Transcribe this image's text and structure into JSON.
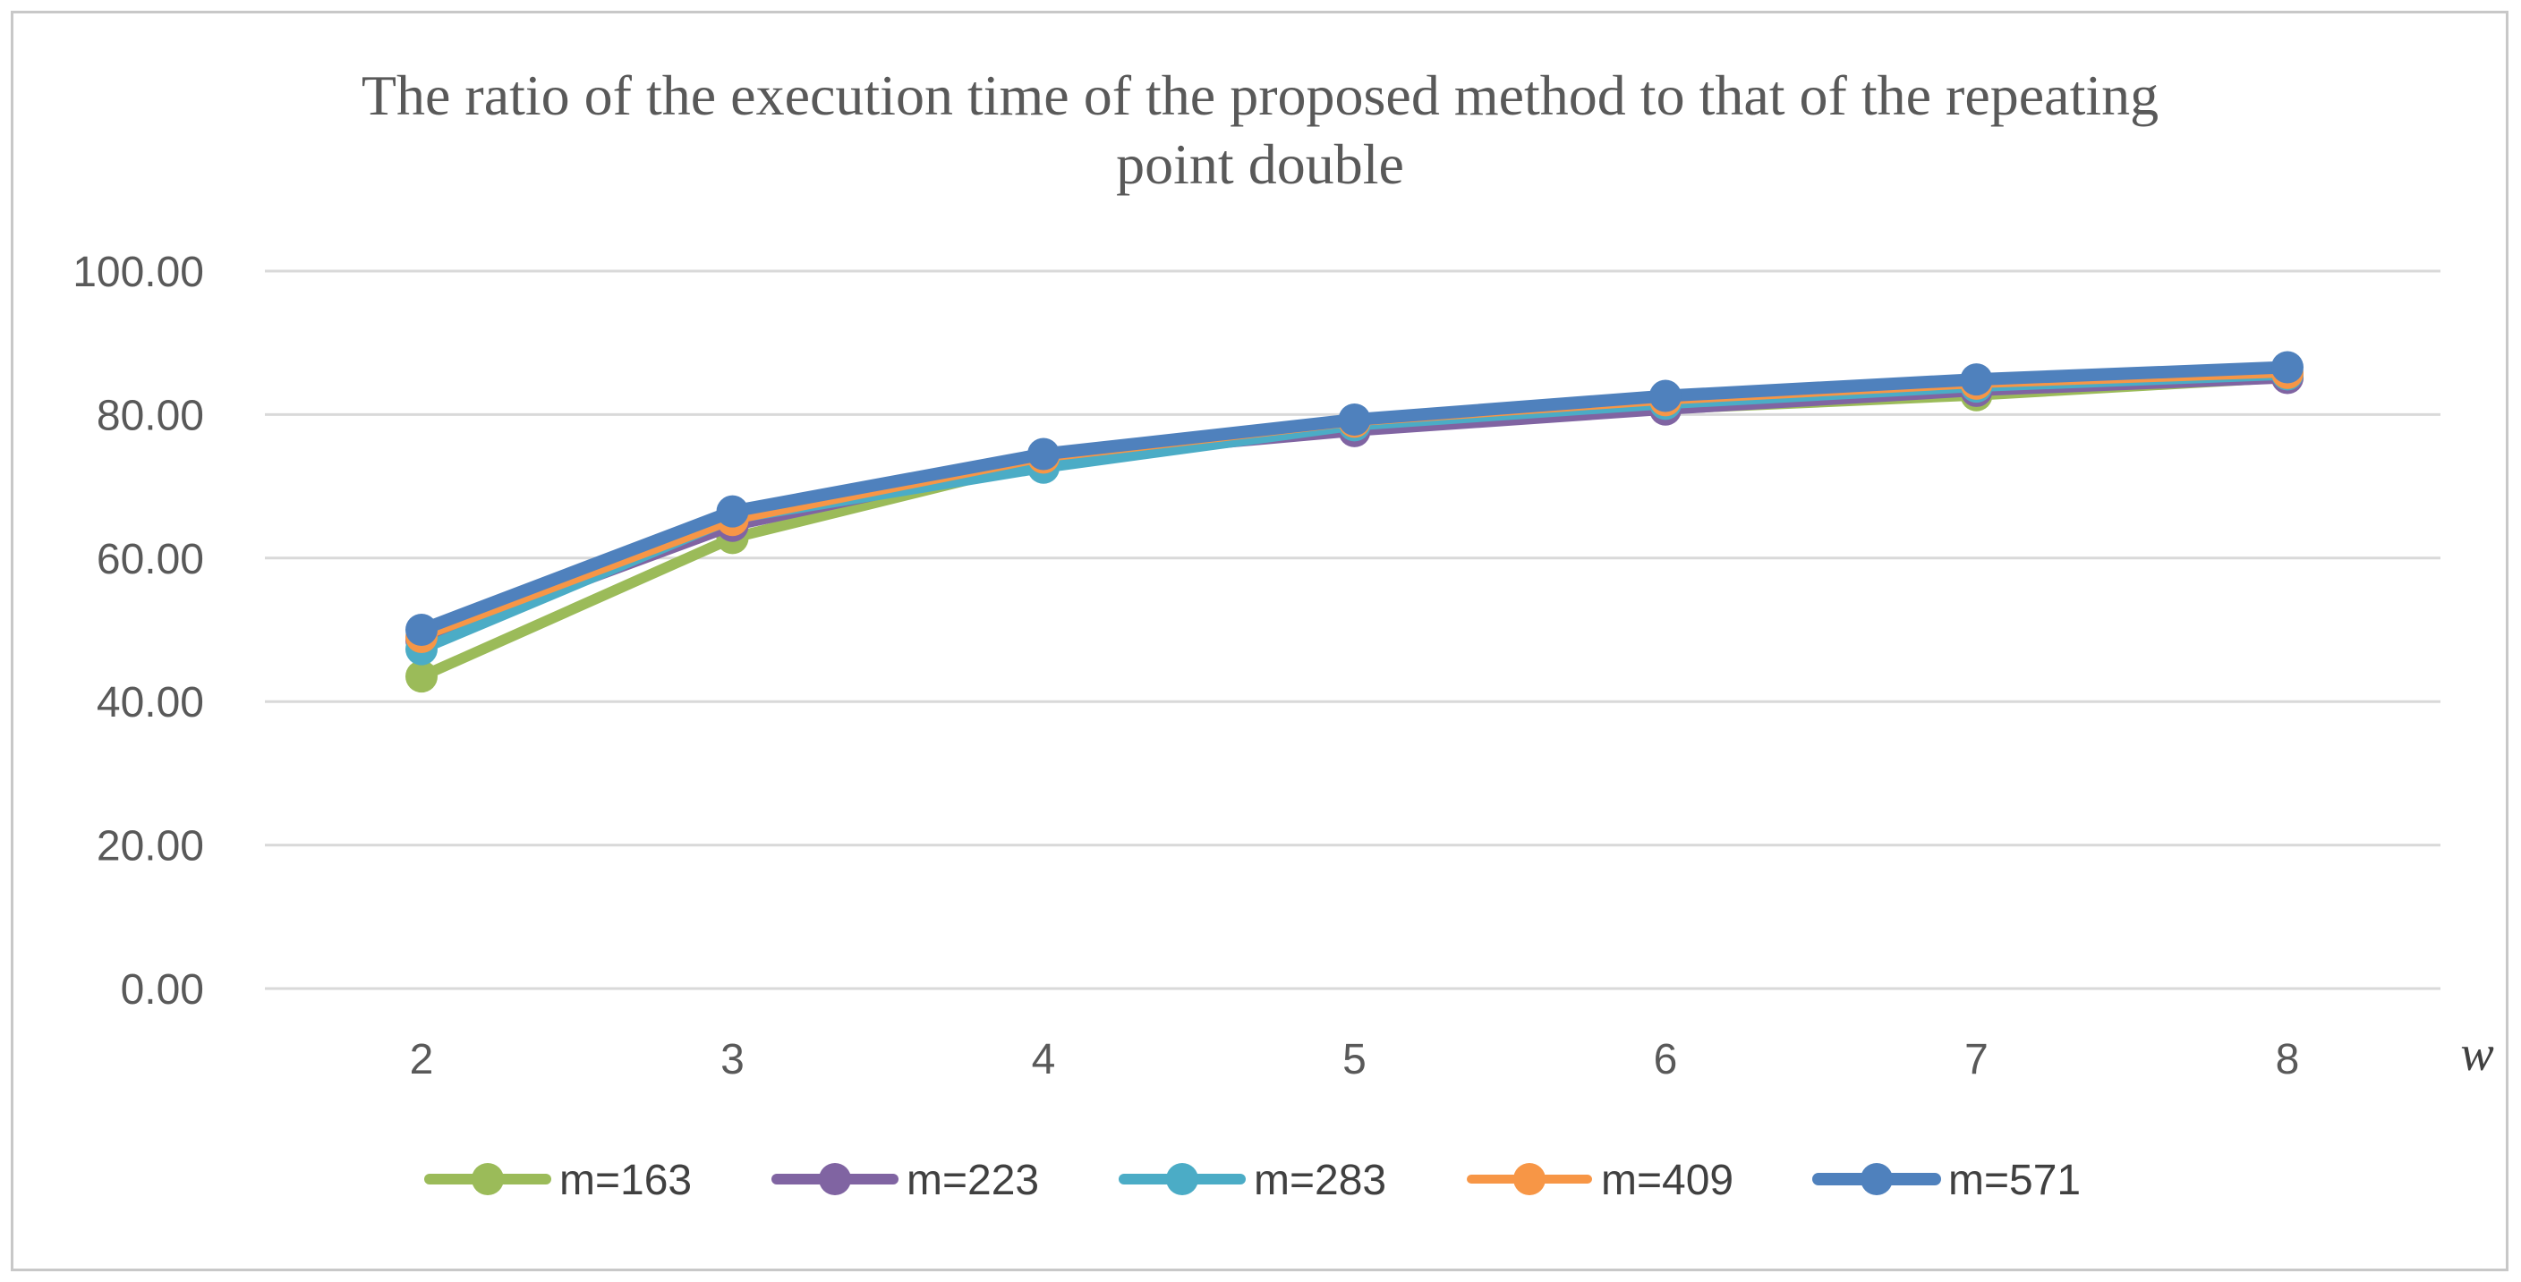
{
  "chart_data": {
    "type": "line",
    "title": "The ratio of the execution time of the proposed method to that of the repeating point double",
    "title_lines": [
      "The ratio of the execution time of the proposed method to that of the repeating",
      "point double"
    ],
    "xlabel": "w",
    "ylabel": "",
    "categories": [
      "2",
      "3",
      "4",
      "5",
      "6",
      "7",
      "8"
    ],
    "ylim": [
      0,
      100
    ],
    "yticks": [
      "0.00",
      "20.00",
      "40.00",
      "60.00",
      "80.00",
      "100.00"
    ],
    "grid": true,
    "legend_position": "bottom",
    "series": [
      {
        "name": "m=163",
        "color": "#9BBB59",
        "values": [
          43.5,
          62.8,
          73.5,
          78.5,
          80.8,
          82.7,
          85.2
        ]
      },
      {
        "name": "m=223",
        "color": "#8064A2",
        "values": [
          48.5,
          64.5,
          73.8,
          77.7,
          80.7,
          83.3,
          85.1
        ]
      },
      {
        "name": "m=283",
        "color": "#4BACC6",
        "values": [
          47.3,
          65.5,
          72.6,
          78.5,
          81.5,
          83.9,
          85.6
        ]
      },
      {
        "name": "m=409",
        "color": "#F79646",
        "values": [
          49.0,
          65.3,
          74.0,
          79.0,
          82.0,
          84.3,
          85.8
        ]
      },
      {
        "name": "m=571",
        "color": "#4F81BD",
        "values": [
          50.0,
          66.5,
          74.5,
          79.3,
          82.6,
          84.9,
          86.6
        ]
      }
    ]
  }
}
